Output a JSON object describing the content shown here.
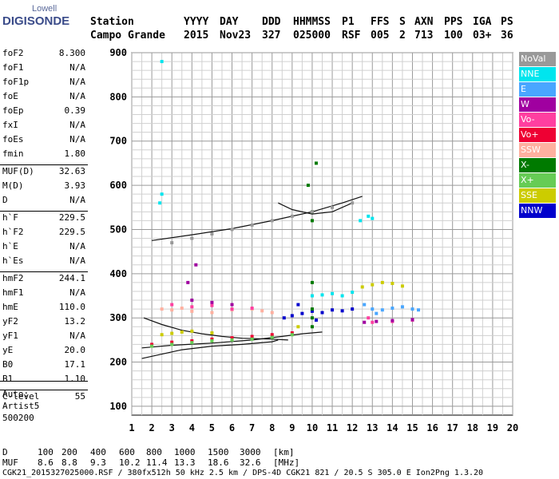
{
  "logo": {
    "top": "Lowell",
    "main": "DIGISONDE"
  },
  "header": {
    "labels": [
      "Station",
      "YYYY",
      "DAY",
      "DDD",
      "HHMMSS",
      "P1",
      "FFS",
      "S",
      "AXN",
      "PPS",
      "IGA",
      "PS"
    ],
    "values": [
      "Campo Grande",
      "2015",
      "Nov23",
      "327",
      "025000",
      "RSF",
      "005",
      "2",
      "713",
      "100",
      "03+",
      "36"
    ]
  },
  "params": [
    {
      "name": "foF2",
      "value": "8.300"
    },
    {
      "name": "foF1",
      "value": "N/A"
    },
    {
      "name": "foF1p",
      "value": "N/A"
    },
    {
      "name": "foE",
      "value": "N/A"
    },
    {
      "name": "foEp",
      "value": "0.39"
    },
    {
      "name": "fxI",
      "value": "N/A"
    },
    {
      "name": "foEs",
      "value": "N/A"
    },
    {
      "name": "fmin",
      "value": "1.80"
    },
    {
      "name": "MUF(D)",
      "value": "32.63"
    },
    {
      "name": "M(D)",
      "value": "3.93"
    },
    {
      "name": "D",
      "value": "N/A"
    },
    {
      "name": "h`F",
      "value": "229.5"
    },
    {
      "name": "h`F2",
      "value": "229.5"
    },
    {
      "name": "h`E",
      "value": "N/A"
    },
    {
      "name": "h`Es",
      "value": "N/A"
    },
    {
      "name": "hmF2",
      "value": "244.1"
    },
    {
      "name": "hmF1",
      "value": "N/A"
    },
    {
      "name": "hmE",
      "value": "110.0"
    },
    {
      "name": "yF2",
      "value": "13.2"
    },
    {
      "name": "yF1",
      "value": "N/A"
    },
    {
      "name": "yE",
      "value": "20.0"
    },
    {
      "name": "B0",
      "value": "17.1"
    },
    {
      "name": "B1",
      "value": "1.10"
    },
    {
      "name": "C-level",
      "value": "55"
    }
  ],
  "auto": {
    "line1": "Auto:",
    "line2": "Artist5",
    "line3": "500200"
  },
  "legend": [
    {
      "label": "NoVal",
      "color": "#999999"
    },
    {
      "label": "NNE",
      "color": "#00e5ee"
    },
    {
      "label": "E",
      "color": "#49a6ff"
    },
    {
      "label": "W",
      "color": "#a000a0"
    },
    {
      "label": "Vo-",
      "color": "#ff3fa0"
    },
    {
      "label": "Vo+",
      "color": "#ee0033"
    },
    {
      "label": "SSW",
      "color": "#ffb0a0"
    },
    {
      "label": "X-",
      "color": "#007a00"
    },
    {
      "label": "X+",
      "color": "#66cc55"
    },
    {
      "label": "SSE",
      "color": "#cccc00"
    },
    {
      "label": "NNW",
      "color": "#0000cc"
    }
  ],
  "footer": {
    "d_label": "D",
    "d_values": [
      "100",
      "200",
      "400",
      "600",
      "800",
      "1000",
      "1500",
      "3000"
    ],
    "d_unit": "[km]",
    "muf_label": "MUF",
    "muf_values": [
      "8.6",
      "8.8",
      "9.3",
      "10.2",
      "11.4",
      "13.3",
      "18.6",
      "32.6"
    ],
    "muf_unit": "[MHz]",
    "info": "CGK21_2015327025000.RSF / 380fx512h 50 kHz 2.5 km / DPS-4D CGK21 821 / 20.5 S 305.0 E Ion2Png 1.3.20"
  },
  "chart_data": {
    "type": "scatter",
    "xlim": [
      1,
      20
    ],
    "ylim": [
      80,
      900
    ],
    "x_ticks": [
      1,
      2,
      3,
      4,
      5,
      6,
      7,
      8,
      9,
      10,
      11,
      12,
      13,
      14,
      15,
      16,
      17,
      18,
      19,
      20
    ],
    "y_ticks": [
      100,
      200,
      300,
      400,
      500,
      600,
      700,
      800,
      900
    ],
    "grid": true,
    "legend_position": "right",
    "series": [
      {
        "name": "E",
        "color": "#49a6ff",
        "points": [
          [
            13,
            320
          ],
          [
            13.5,
            318
          ],
          [
            14,
            322
          ],
          [
            14.5,
            325
          ],
          [
            15,
            320
          ],
          [
            15.3,
            318
          ],
          [
            12.6,
            330
          ],
          [
            13.2,
            310
          ]
        ]
      },
      {
        "name": "NNW",
        "color": "#0000cc",
        "points": [
          [
            8.6,
            300
          ],
          [
            9,
            305
          ],
          [
            9.5,
            310
          ],
          [
            10,
            315
          ],
          [
            10.5,
            312
          ],
          [
            11,
            318
          ],
          [
            11.5,
            316
          ],
          [
            12,
            320
          ],
          [
            9.3,
            330
          ],
          [
            10.2,
            295
          ]
        ]
      },
      {
        "name": "NNE",
        "color": "#00e5ee",
        "points": [
          [
            10,
            350
          ],
          [
            10.5,
            352
          ],
          [
            11,
            355
          ],
          [
            11.5,
            350
          ],
          [
            12,
            358
          ],
          [
            12.4,
            520
          ],
          [
            12.8,
            530
          ],
          [
            13,
            525
          ],
          [
            2.4,
            560
          ],
          [
            2.5,
            580
          ],
          [
            2.5,
            880
          ]
        ]
      },
      {
        "name": "SSE",
        "color": "#cccc00",
        "points": [
          [
            12.5,
            370
          ],
          [
            13,
            375
          ],
          [
            13.5,
            380
          ],
          [
            14,
            378
          ],
          [
            14.5,
            372
          ],
          [
            2.5,
            262
          ],
          [
            3,
            265
          ],
          [
            3.5,
            268
          ],
          [
            4,
            270
          ],
          [
            5,
            266
          ],
          [
            9.3,
            280
          ]
        ]
      },
      {
        "name": "SSW",
        "color": "#ffb0a0",
        "points": [
          [
            2.5,
            320
          ],
          [
            3,
            318
          ],
          [
            3.5,
            322
          ],
          [
            4,
            315
          ],
          [
            5,
            312
          ],
          [
            6,
            318
          ],
          [
            7,
            320
          ],
          [
            7.5,
            316
          ],
          [
            8,
            312
          ]
        ]
      },
      {
        "name": "Vo-",
        "color": "#ff3fa0",
        "points": [
          [
            3,
            330
          ],
          [
            4,
            325
          ],
          [
            5,
            328
          ],
          [
            6,
            320
          ],
          [
            7,
            322
          ],
          [
            12.8,
            300
          ],
          [
            13,
            290
          ],
          [
            14,
            292
          ],
          [
            15,
            295
          ]
        ]
      },
      {
        "name": "Vo+",
        "color": "#ee0033",
        "points": [
          [
            2,
            240
          ],
          [
            3,
            245
          ],
          [
            4,
            248
          ],
          [
            5,
            252
          ],
          [
            6,
            255
          ],
          [
            7,
            258
          ],
          [
            8,
            262
          ],
          [
            9,
            266
          ]
        ]
      },
      {
        "name": "W",
        "color": "#a000a0",
        "points": [
          [
            4,
            340
          ],
          [
            5,
            335
          ],
          [
            6,
            330
          ],
          [
            3.8,
            380
          ],
          [
            4.2,
            420
          ],
          [
            12.6,
            290
          ],
          [
            13.2,
            292
          ],
          [
            14,
            294
          ],
          [
            15,
            296
          ]
        ]
      },
      {
        "name": "X-",
        "color": "#007a00",
        "points": [
          [
            10,
            280
          ],
          [
            10,
            300
          ],
          [
            10,
            320
          ],
          [
            10,
            380
          ],
          [
            10,
            520
          ],
          [
            10,
            540
          ],
          [
            9.8,
            600
          ],
          [
            10.2,
            650
          ]
        ]
      },
      {
        "name": "X+",
        "color": "#66cc55",
        "points": [
          [
            2,
            236
          ],
          [
            3,
            240
          ],
          [
            4,
            244
          ],
          [
            5,
            248
          ],
          [
            6,
            250
          ],
          [
            7,
            252
          ],
          [
            8,
            256
          ],
          [
            9,
            262
          ]
        ]
      },
      {
        "name": "NoVal",
        "color": "#999999",
        "points": [
          [
            3,
            470
          ],
          [
            4,
            480
          ],
          [
            5,
            490
          ],
          [
            6,
            500
          ],
          [
            7,
            510
          ],
          [
            8,
            520
          ],
          [
            9,
            530
          ],
          [
            10,
            540
          ],
          [
            11,
            550
          ],
          [
            12,
            560
          ]
        ]
      }
    ],
    "traces": [
      {
        "points": [
          [
            2,
            475
          ],
          [
            4,
            488
          ],
          [
            6,
            502
          ],
          [
            8,
            520
          ],
          [
            10,
            540
          ],
          [
            11.5,
            560
          ],
          [
            12.5,
            575
          ]
        ]
      },
      {
        "points": [
          [
            1.5,
            232
          ],
          [
            3,
            238
          ],
          [
            5,
            243
          ],
          [
            7,
            250
          ],
          [
            8.5,
            258
          ],
          [
            9.5,
            264
          ],
          [
            10.5,
            268
          ]
        ]
      },
      {
        "points": [
          [
            1.5,
            208
          ],
          [
            2.5,
            218
          ],
          [
            3.5,
            228
          ],
          [
            5,
            236
          ],
          [
            6.5,
            240
          ],
          [
            8,
            246
          ],
          [
            8.3,
            250
          ]
        ]
      },
      {
        "points": [
          [
            1.6,
            300
          ],
          [
            2.5,
            285
          ],
          [
            3.5,
            272
          ],
          [
            4.5,
            264
          ],
          [
            5.5,
            258
          ],
          [
            6.5,
            254
          ],
          [
            8,
            252
          ],
          [
            8.8,
            250
          ]
        ]
      },
      {
        "points": [
          [
            8.3,
            560
          ],
          [
            9,
            545
          ],
          [
            10,
            535
          ],
          [
            11,
            540
          ],
          [
            12,
            560
          ]
        ]
      }
    ]
  }
}
